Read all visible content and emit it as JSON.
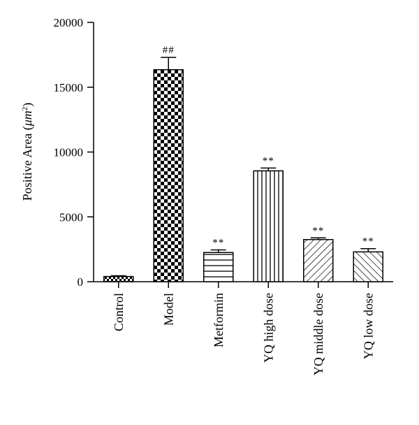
{
  "chart_data": {
    "type": "bar",
    "title": "",
    "ylabel": "Positive Area (μm²)",
    "ylabel_parts": {
      "text": "Positive Area (",
      "unit": "μm",
      "exp": "2",
      "close": ")"
    },
    "xlabel": "",
    "ylim": [
      0,
      20000
    ],
    "yticks": [
      0,
      5000,
      10000,
      15000,
      20000
    ],
    "categories": [
      "Control",
      "Model",
      "Metformin",
      "YQ high dose",
      "YQ middle dose",
      "YQ low dose"
    ],
    "values": [
      400,
      16350,
      2250,
      8550,
      3250,
      2300
    ],
    "errors": [
      60,
      950,
      200,
      220,
      130,
      250
    ],
    "annotations": [
      "",
      "##",
      "**",
      "**",
      "**",
      "**"
    ],
    "patterns": [
      "fine-checker",
      "checker",
      "horizontal",
      "vertical",
      "diagonal-up",
      "diagonal-down"
    ],
    "grid": false,
    "legend": "none"
  }
}
